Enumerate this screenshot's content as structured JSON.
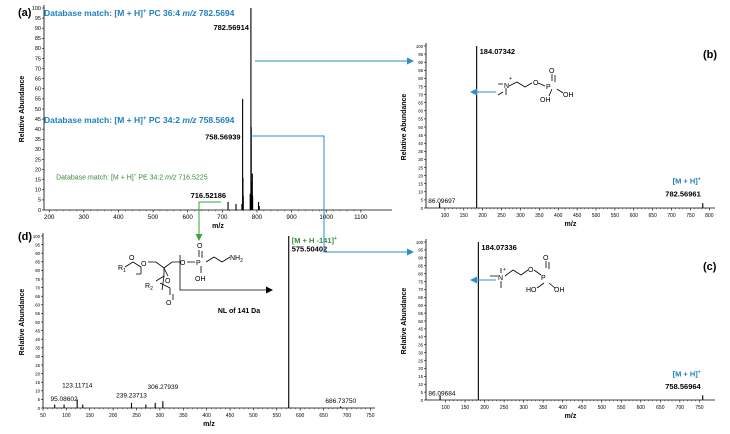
{
  "colors": {
    "annotation_blue": "#1f7fc0",
    "annotation_green": "#3a8a3a",
    "arrow_blue": "#2a8ed1",
    "arrow_green": "#39a339",
    "spectrum": "#000000"
  },
  "chart_data": [
    {
      "id": "a",
      "panel_label": "(a)",
      "type": "bar",
      "xlabel": "m/z",
      "ylabel": "Relative Abundance",
      "xlim": [
        185,
        1190
      ],
      "ylim": [
        0,
        100
      ],
      "xticks": [
        200,
        300,
        400,
        500,
        600,
        700,
        800,
        900,
        1000,
        1100
      ],
      "yticks": [
        0,
        5,
        10,
        15,
        20,
        25,
        30,
        35,
        40,
        45,
        50,
        55,
        60,
        65,
        70,
        75,
        80,
        85,
        90,
        95,
        100
      ],
      "peaks": [
        {
          "mz": 716.52186,
          "rel": 4
        },
        {
          "mz": 739.5,
          "rel": 3
        },
        {
          "mz": 756.5,
          "rel": 3
        },
        {
          "mz": 758.56939,
          "rel": 55
        },
        {
          "mz": 759.5,
          "rel": 16
        },
        {
          "mz": 760.5,
          "rel": 7
        },
        {
          "mz": 780.5,
          "rel": 8
        },
        {
          "mz": 782.56914,
          "rel": 100
        },
        {
          "mz": 783.5,
          "rel": 41
        },
        {
          "mz": 784.5,
          "rel": 14
        },
        {
          "mz": 786.6,
          "rel": 18
        },
        {
          "mz": 787.5,
          "rel": 7
        },
        {
          "mz": 804.6,
          "rel": 4
        },
        {
          "mz": 806.6,
          "rel": 2
        }
      ],
      "annotations": [
        {
          "text": "782.56914",
          "mz": 782.56914,
          "rel": 89,
          "anchor": "end",
          "weight": "bold",
          "color": "#000000"
        },
        {
          "text": "758.56939",
          "mz": 758.56939,
          "rel": 35,
          "anchor": "end",
          "weight": "bold",
          "color": "#000000"
        },
        {
          "text": "716.52186",
          "mz": 716.52186,
          "rel": 6,
          "anchor": "end",
          "weight": "bold",
          "color": "#000000"
        }
      ],
      "matches": [
        {
          "prefix": "Database match:",
          "ion": "[M + H]",
          "sup": "+",
          "lipid": "PC 36:4",
          "mz_label": "m/z",
          "mz_value": "782.5694",
          "color": "#1f7fc0",
          "bold": true,
          "size": 8.5,
          "mz": 185,
          "rel": 96
        },
        {
          "prefix": "Database match:",
          "ion": "[M + H]",
          "sup": "+",
          "lipid": "PC 34:2",
          "mz_label": "m/z",
          "mz_value": "758.5694",
          "color": "#1f7fc0",
          "bold": true,
          "size": 8.5,
          "mz": 185,
          "rel": 43
        },
        {
          "prefix": "Database match:",
          "ion": "[M + H]",
          "sup": "+",
          "lipid": "PE 34:2",
          "mz_label": "m/z",
          "mz_value": "716.5225",
          "color": "#3a8a3a",
          "bold": false,
          "size": 7,
          "mz": 220,
          "rel": 15
        }
      ]
    },
    {
      "id": "b",
      "panel_label": "(b)",
      "type": "bar",
      "xlabel": "m/z",
      "ylabel": "Relative Abundance",
      "xlim": [
        50,
        815
      ],
      "ylim": [
        0,
        100
      ],
      "xticks": [
        100,
        150,
        200,
        250,
        300,
        350,
        400,
        450,
        500,
        550,
        600,
        650,
        700,
        750,
        800
      ],
      "yticks": [
        0,
        5,
        10,
        15,
        20,
        25,
        30,
        35,
        40,
        45,
        50,
        55,
        60,
        65,
        70,
        75,
        80,
        85,
        90,
        95,
        100
      ],
      "peaks": [
        {
          "mz": 86.09697,
          "rel": 3
        },
        {
          "mz": 184.07342,
          "rel": 100
        },
        {
          "mz": 782.56961,
          "rel": 3
        }
      ],
      "annotations": [
        {
          "text": "184.07342",
          "mz": 184.07342,
          "rel": 95,
          "anchor": "start",
          "dx": 3,
          "weight": "bold",
          "color": "#000000"
        },
        {
          "text": "86.09697",
          "mz": 56,
          "rel": 3,
          "anchor": "start",
          "weight": "normal",
          "color": "#000000"
        },
        {
          "text": "782.56961",
          "mz": 782.56961,
          "rel": 7,
          "anchor": "end",
          "weight": "bold",
          "color": "#000000"
        }
      ],
      "ion": {
        "text": "[M + H]",
        "sup": "+",
        "mz": 782.56961,
        "rel": 15,
        "anchor": "end",
        "color": "#1f7fc0"
      }
    },
    {
      "id": "c",
      "panel_label": "(c)",
      "type": "bar",
      "xlabel": "m/z",
      "ylabel": "Relative Abundance",
      "xlim": [
        50,
        790
      ],
      "ylim": [
        0,
        100
      ],
      "xticks": [
        100,
        150,
        200,
        250,
        300,
        350,
        400,
        450,
        500,
        550,
        600,
        650,
        700,
        750
      ],
      "yticks": [
        0,
        5,
        10,
        15,
        20,
        25,
        30,
        35,
        40,
        45,
        50,
        55,
        60,
        65,
        70,
        75,
        80,
        85,
        90,
        95,
        100
      ],
      "peaks": [
        {
          "mz": 86.09684,
          "rel": 3
        },
        {
          "mz": 184.07336,
          "rel": 100
        },
        {
          "mz": 758.56964,
          "rel": 3
        }
      ],
      "annotations": [
        {
          "text": "184.07336",
          "mz": 184.07336,
          "rel": 95,
          "anchor": "start",
          "dx": 3,
          "weight": "bold",
          "color": "#000000"
        },
        {
          "text": "86.09684",
          "mz": 56,
          "rel": 3,
          "anchor": "start",
          "weight": "normal",
          "color": "#000000"
        },
        {
          "text": "758.56964",
          "mz": 758.56964,
          "rel": 7,
          "anchor": "end",
          "weight": "bold",
          "color": "#000000"
        }
      ],
      "ion": {
        "text": "[M + H]",
        "sup": "+",
        "mz": 758.56964,
        "rel": 15,
        "anchor": "end",
        "color": "#1f7fc0"
      }
    },
    {
      "id": "d",
      "panel_label": "(d)",
      "type": "bar",
      "xlabel": "m/z",
      "ylabel": "Relative Abundance",
      "xlim": [
        50,
        760
      ],
      "ylim": [
        0,
        100
      ],
      "xticks": [
        50,
        100,
        150,
        200,
        250,
        300,
        350,
        400,
        450,
        500,
        550,
        600,
        650,
        700,
        750
      ],
      "yticks": [
        0,
        5,
        10,
        15,
        20,
        25,
        30,
        35,
        40,
        45,
        50,
        55,
        60,
        65,
        70,
        75,
        80,
        85,
        90,
        95,
        100
      ],
      "peaks": [
        {
          "mz": 75,
          "rel": 2
        },
        {
          "mz": 95.08602,
          "rel": 2
        },
        {
          "mz": 123.11714,
          "rel": 5
        },
        {
          "mz": 135,
          "rel": 2
        },
        {
          "mz": 239.23713,
          "rel": 3
        },
        {
          "mz": 270,
          "rel": 2
        },
        {
          "mz": 290,
          "rel": 3
        },
        {
          "mz": 306.27939,
          "rel": 4
        },
        {
          "mz": 575.50402,
          "rel": 100
        },
        {
          "mz": 686.7375,
          "rel": 1
        }
      ],
      "annotations": [
        {
          "text": "575.50402",
          "mz": 575.50402,
          "rel": 91,
          "anchor": "start",
          "dx": 3,
          "weight": "bold",
          "color": "#000000"
        },
        {
          "text": "123.11714",
          "mz": 123.11714,
          "rel": 12,
          "anchor": "middle",
          "weight": "normal",
          "color": "#000000"
        },
        {
          "text": "306.27939",
          "mz": 306.27939,
          "rel": 11,
          "anchor": "middle",
          "weight": "normal",
          "color": "#000000"
        },
        {
          "text": "95.08602",
          "mz": 95.08602,
          "rel": 4,
          "anchor": "middle",
          "weight": "normal",
          "color": "#000000"
        },
        {
          "text": "239.23713",
          "mz": 239.23713,
          "rel": 6,
          "anchor": "middle",
          "weight": "normal",
          "color": "#000000"
        },
        {
          "text": "686.73750",
          "mz": 686.7375,
          "rel": 3,
          "anchor": "middle",
          "weight": "normal",
          "color": "#000000"
        }
      ],
      "ion": {
        "text": "[M + H -141]",
        "sup": "+",
        "mz": 575.50402,
        "rel": 96,
        "anchor": "start",
        "dx": 3,
        "color": "#3a8a3a"
      },
      "neutral_loss": "NL of 141 Da"
    }
  ],
  "structure_labels": {
    "phosphocholine": {
      "nitrogen": "N",
      "plus": "+",
      "oxygen": "O",
      "phosphorus": "P",
      "hydroxyl": "OH",
      "hydroxyl_left": "HO"
    },
    "lipid": {
      "r1": "R",
      "r1_sub": "1",
      "r2": "R",
      "r2_sub": "2",
      "oxygen": "O",
      "phosphorus": "P",
      "hydroxyl": "OH",
      "amine": "NH",
      "amine_sub": "2"
    }
  }
}
